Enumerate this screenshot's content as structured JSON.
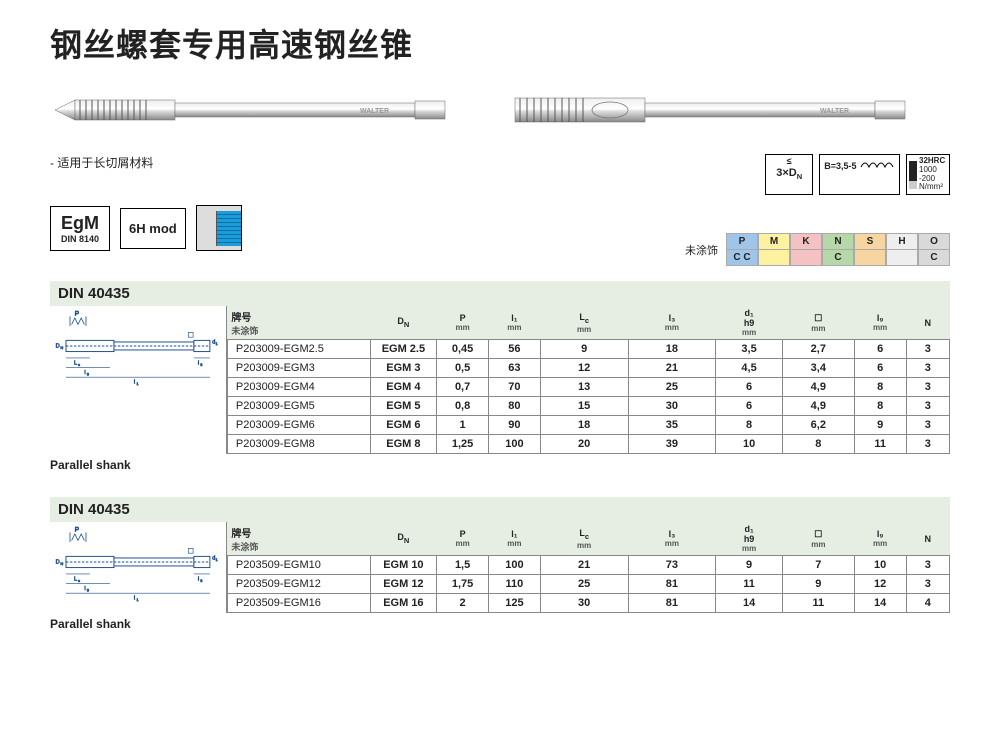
{
  "title": "钢丝螺套专用高速钢丝锥",
  "note": "- 适用于长切屑材料",
  "badges": {
    "egm": {
      "main": "EgM",
      "sub": "DIN 8140"
    },
    "tol": "6H mod",
    "depth": {
      "top": "≤",
      "main": "3×D",
      "sub": "N"
    },
    "b": "B=3,5-5",
    "hrc": {
      "main": "32HRC",
      "l1": "1000",
      "l2": "-200",
      "l3": "N/mm²"
    }
  },
  "materials": {
    "label": "未涂饰",
    "cols": [
      {
        "h": "P",
        "v": "C C",
        "bg": "#9fc5e8"
      },
      {
        "h": "M",
        "v": "",
        "bg": "#fef2a0"
      },
      {
        "h": "K",
        "v": "",
        "bg": "#f4c2c2"
      },
      {
        "h": "N",
        "v": "C",
        "bg": "#b6d7a8"
      },
      {
        "h": "S",
        "v": "",
        "bg": "#f6d5a0"
      },
      {
        "h": "H",
        "v": "",
        "bg": "#eeeeee"
      },
      {
        "h": "O",
        "v": "C",
        "bg": "#d9d9d9"
      }
    ]
  },
  "tables": [
    {
      "standard": "DIN 40435",
      "brand": "牌号",
      "coating": "未涂饰",
      "headers": [
        "D",
        "P mm",
        "l₁ mm",
        "L_c mm",
        "l₃ mm",
        "d₁ h9 mm",
        "☐ mm",
        "l₉ mm",
        "N"
      ],
      "label": "Parallel shank",
      "rows": [
        [
          "P203009-EGM2.5",
          "EGM 2.5",
          "0,45",
          "56",
          "9",
          "18",
          "3,5",
          "2,7",
          "6",
          "3"
        ],
        [
          "P203009-EGM3",
          "EGM 3",
          "0,5",
          "63",
          "12",
          "21",
          "4,5",
          "3,4",
          "6",
          "3"
        ],
        [
          "P203009-EGM4",
          "EGM 4",
          "0,7",
          "70",
          "13",
          "25",
          "6",
          "4,9",
          "8",
          "3"
        ],
        [
          "P203009-EGM5",
          "EGM 5",
          "0,8",
          "80",
          "15",
          "30",
          "6",
          "4,9",
          "8",
          "3"
        ],
        [
          "P203009-EGM6",
          "EGM 6",
          "1",
          "90",
          "18",
          "35",
          "8",
          "6,2",
          "9",
          "3"
        ],
        [
          "P203009-EGM8",
          "EGM 8",
          "1,25",
          "100",
          "20",
          "39",
          "10",
          "8",
          "11",
          "3"
        ]
      ]
    },
    {
      "standard": "DIN 40435",
      "brand": "牌号",
      "coating": "未涂饰",
      "headers": [
        "D",
        "P mm",
        "l₁ mm",
        "L_c mm",
        "l₃ mm",
        "d₁ h9 mm",
        "☐ mm",
        "l₉ mm",
        "N"
      ],
      "label": "Parallel shank",
      "rows": [
        [
          "P203509-EGM10",
          "EGM 10",
          "1,5",
          "100",
          "21",
          "73",
          "9",
          "7",
          "10",
          "3"
        ],
        [
          "P203509-EGM12",
          "EGM 12",
          "1,75",
          "110",
          "25",
          "81",
          "11",
          "9",
          "12",
          "3"
        ],
        [
          "P203509-EGM16",
          "EGM 16",
          "2",
          "125",
          "30",
          "81",
          "14",
          "11",
          "14",
          "4"
        ]
      ]
    }
  ]
}
